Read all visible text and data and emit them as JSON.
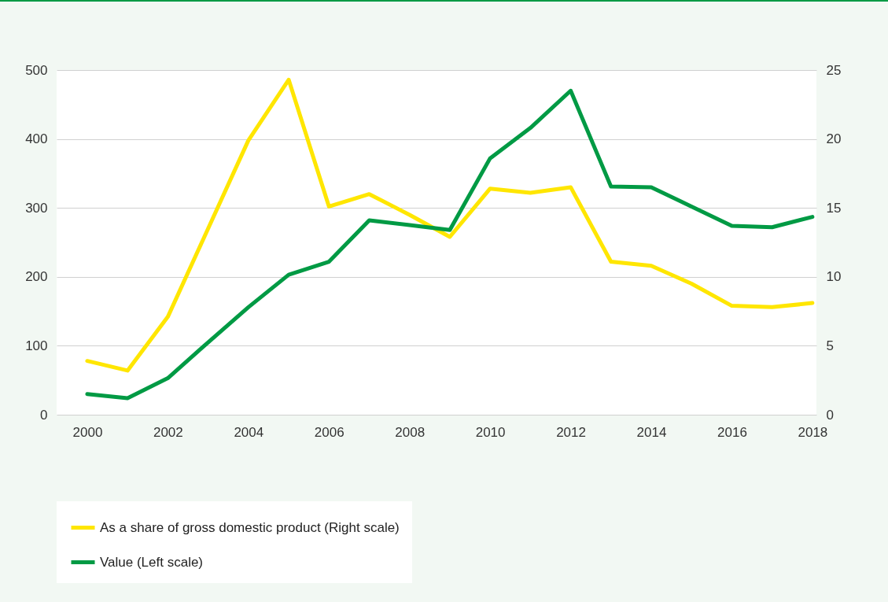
{
  "chart_data": {
    "type": "line",
    "x": [
      2000,
      2001,
      2002,
      2003,
      2004,
      2005,
      2006,
      2007,
      2008,
      2009,
      2010,
      2011,
      2012,
      2013,
      2014,
      2015,
      2016,
      2017,
      2018
    ],
    "xlim": [
      1999.24,
      2018.1
    ],
    "xticks": [
      2000,
      2002,
      2004,
      2006,
      2008,
      2010,
      2012,
      2014,
      2016,
      2018
    ],
    "ylim": [
      0,
      500
    ],
    "yticks": [
      0,
      100,
      200,
      300,
      400,
      500
    ],
    "y2lim": [
      0,
      25
    ],
    "y2ticks": [
      0,
      5,
      10,
      15,
      20,
      25
    ],
    "series": [
      {
        "name": "As a share of gross domestic product (Right scale)",
        "color": "#ffe600",
        "axis": "y2",
        "values": [
          3.9,
          3.2,
          7.1,
          13.5,
          19.9,
          24.3,
          15.1,
          16.0,
          14.5,
          12.9,
          16.4,
          16.1,
          16.5,
          11.1,
          10.8,
          9.5,
          7.9,
          7.8,
          8.1
        ]
      },
      {
        "name": "Value (Left scale)",
        "color": "#009a44",
        "values": [
          30,
          24,
          53,
          105,
          156,
          203,
          222,
          282,
          275,
          268,
          372,
          416,
          470,
          331,
          330,
          302,
          274,
          272,
          287
        ]
      }
    ],
    "grid": "y",
    "legend": "bottom"
  }
}
